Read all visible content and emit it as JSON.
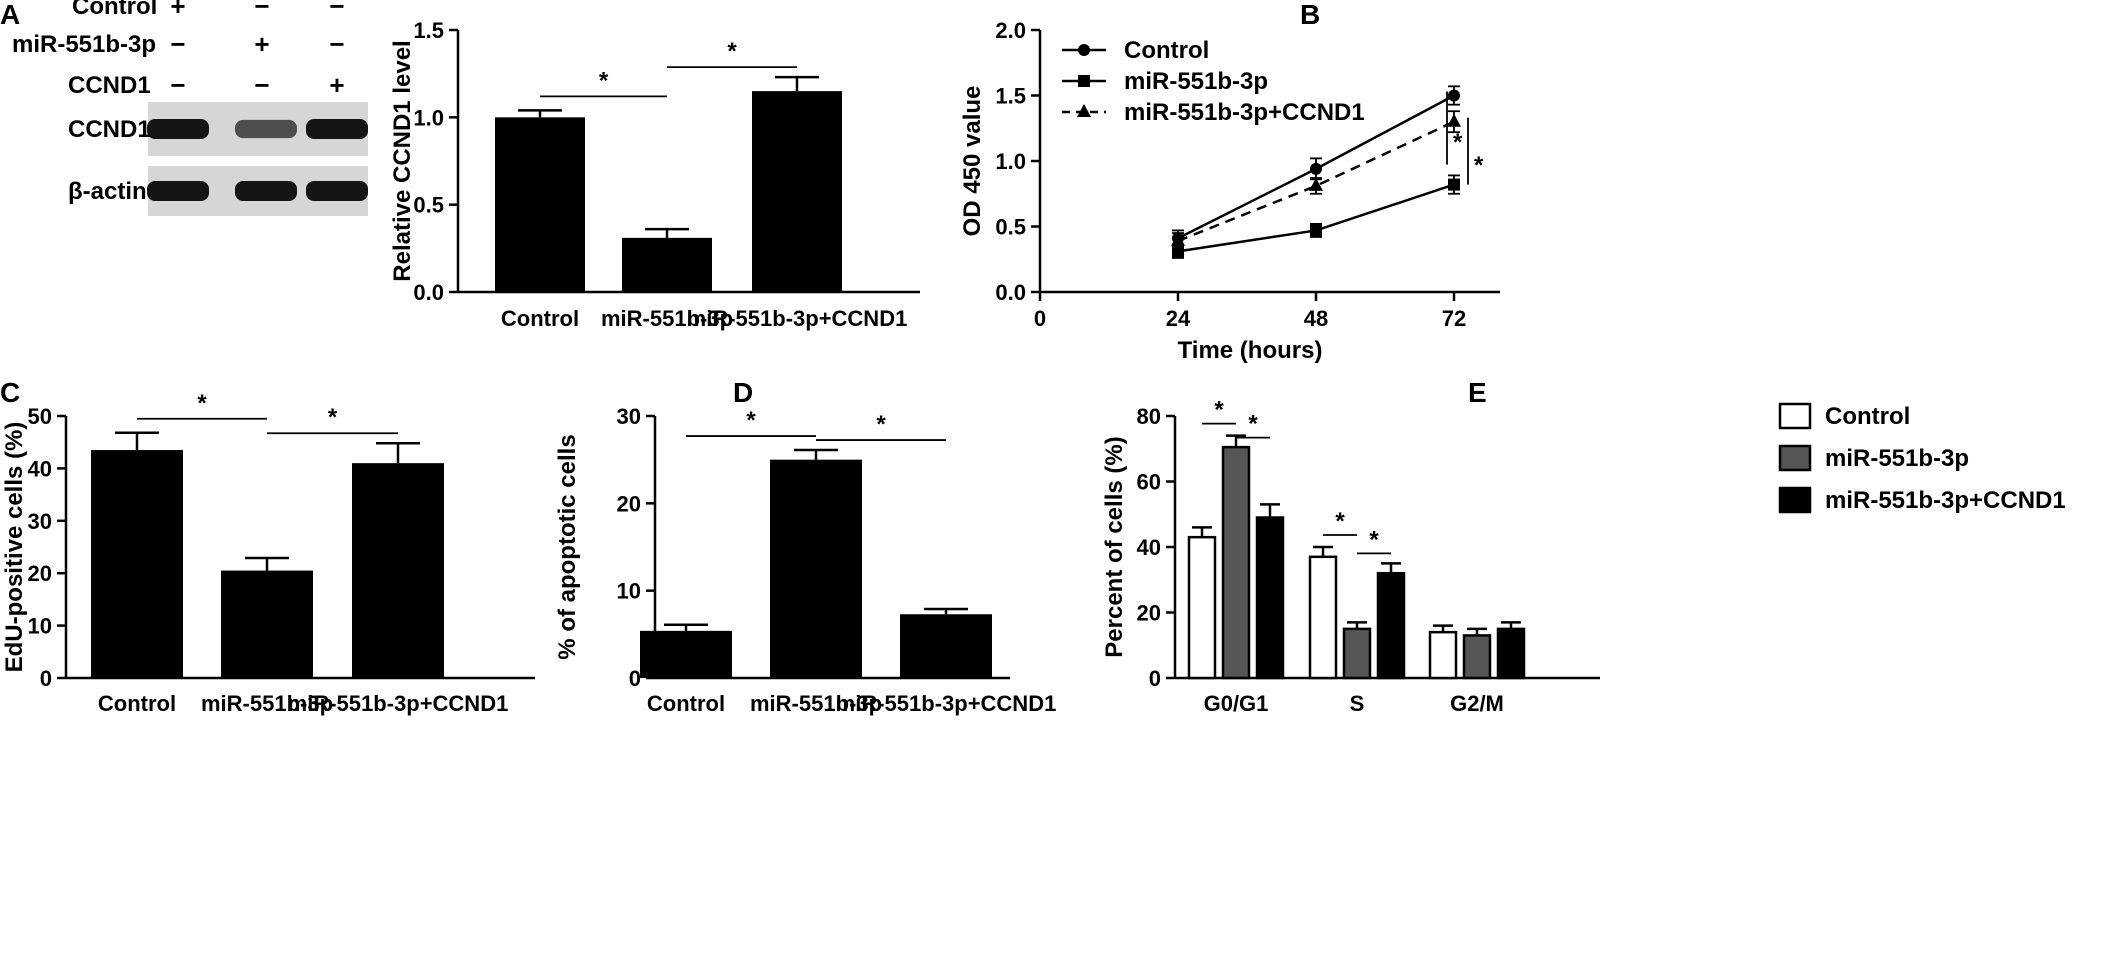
{
  "panel_labels": [
    "A",
    "B",
    "C",
    "D",
    "E"
  ],
  "colors": {
    "black": "#000000",
    "gray": "#555555",
    "white": "#ffffff",
    "blot_bg": "#d6d6d6",
    "band": "#151515"
  },
  "blot": {
    "condition_rows": [
      {
        "label": "Control",
        "signs": [
          "+",
          "−",
          "−"
        ]
      },
      {
        "label": "miR-551b-3p",
        "signs": [
          "−",
          "+",
          "−"
        ]
      },
      {
        "label": "CCND1",
        "signs": [
          "−",
          "−",
          "+"
        ]
      }
    ],
    "strips": [
      {
        "label": "CCND1",
        "band_intensity": [
          1.0,
          0.55,
          1.0
        ]
      },
      {
        "label": "β-actin",
        "band_intensity": [
          1.0,
          1.0,
          1.0
        ]
      }
    ]
  },
  "chart_data": [
    {
      "panel": "A",
      "type": "bar",
      "title": "",
      "xlabel": "",
      "ylabel": "Relative CCND1 level",
      "ylim": [
        0,
        1.5
      ],
      "yticks": [
        "0.0",
        "0.5",
        "1.0",
        "1.5"
      ],
      "categories": [
        "Control",
        "miR-551b-3p",
        "miR-551b-3p+CCND1"
      ],
      "values": [
        1.0,
        0.31,
        1.15
      ],
      "errors": [
        0.04,
        0.05,
        0.08
      ],
      "significance": [
        {
          "from": 0,
          "to": 1,
          "label": "*"
        },
        {
          "from": 1,
          "to": 2,
          "label": "*"
        }
      ]
    },
    {
      "panel": "B",
      "type": "line",
      "title": "",
      "xlabel": "Time (hours)",
      "ylabel": "OD 450 value",
      "xlim": [
        0,
        80
      ],
      "ylim": [
        0,
        2.0
      ],
      "xticks": [
        "0",
        "24",
        "48",
        "72"
      ],
      "yticks": [
        "0.0",
        "0.5",
        "1.0",
        "1.5",
        "2.0"
      ],
      "legend": "top-left",
      "x": [
        24,
        48,
        72
      ],
      "series": [
        {
          "name": "Control",
          "marker": "circle",
          "dashed": false,
          "values": [
            0.41,
            0.94,
            1.5
          ],
          "errors": [
            0.06,
            0.08,
            0.07
          ]
        },
        {
          "name": "miR-551b-3p",
          "marker": "square",
          "dashed": false,
          "values": [
            0.31,
            0.47,
            0.82
          ],
          "errors": [
            0.05,
            0.05,
            0.07
          ]
        },
        {
          "name": "miR-551b-3p+CCND1",
          "marker": "triangle",
          "dashed": true,
          "values": [
            0.39,
            0.81,
            1.3
          ],
          "errors": [
            0.06,
            0.06,
            0.08
          ]
        }
      ],
      "significance": [
        {
          "label": "*",
          "top": 1.5,
          "bottom": 0.82
        },
        {
          "label": "*",
          "top": 1.3,
          "bottom": 0.82
        }
      ]
    },
    {
      "panel": "C",
      "type": "bar",
      "title": "",
      "xlabel": "",
      "ylabel": "EdU-positive cells (%)",
      "ylim": [
        0,
        50
      ],
      "yticks": [
        "0",
        "10",
        "20",
        "30",
        "40",
        "50"
      ],
      "categories": [
        "Control",
        "miR-551b-3p",
        "miR-551b-3p+CCND1"
      ],
      "values": [
        43.5,
        20.5,
        41.0
      ],
      "errors": [
        3.3,
        2.4,
        3.8
      ],
      "significance": [
        {
          "from": 0,
          "to": 1,
          "label": "*"
        },
        {
          "from": 1,
          "to": 2,
          "label": "*"
        }
      ]
    },
    {
      "panel": "D",
      "type": "bar",
      "title": "",
      "xlabel": "",
      "ylabel": "% of apoptotic cells",
      "ylim": [
        0,
        30
      ],
      "yticks": [
        "0",
        "10",
        "20",
        "30"
      ],
      "categories": [
        "Control",
        "miR-551b-3p",
        "miR-551b-3p+CCND1"
      ],
      "values": [
        5.4,
        25.0,
        7.3
      ],
      "errors": [
        0.7,
        1.1,
        0.6
      ],
      "significance": [
        {
          "from": 0,
          "to": 1,
          "label": "*"
        },
        {
          "from": 1,
          "to": 2,
          "label": "*"
        }
      ]
    },
    {
      "panel": "E",
      "type": "bar",
      "title": "",
      "xlabel": "",
      "ylabel": "Percent of cells (%)",
      "ylim": [
        0,
        80
      ],
      "yticks": [
        "0",
        "20",
        "40",
        "60",
        "80"
      ],
      "legend": "top-right",
      "categories": [
        "G0/G1",
        "S",
        "G2/M"
      ],
      "series": [
        {
          "name": "Control",
          "fill": "#ffffff",
          "values": [
            43,
            37,
            14
          ],
          "errors": [
            3,
            3,
            2
          ]
        },
        {
          "name": "miR-551b-3p",
          "fill": "#555555",
          "values": [
            70.5,
            15,
            13
          ],
          "errors": [
            3.5,
            2,
            2
          ]
        },
        {
          "name": "miR-551b-3p+CCND1",
          "fill": "#000000",
          "values": [
            49,
            32,
            15
          ],
          "errors": [
            4,
            3,
            2
          ]
        }
      ],
      "significance": [
        {
          "group": 0,
          "from": 0,
          "to": 1,
          "label": "*"
        },
        {
          "group": 0,
          "from": 1,
          "to": 2,
          "label": "*"
        },
        {
          "group": 1,
          "from": 0,
          "to": 1,
          "label": "*"
        },
        {
          "group": 1,
          "from": 1,
          "to": 2,
          "label": "*"
        }
      ]
    }
  ]
}
